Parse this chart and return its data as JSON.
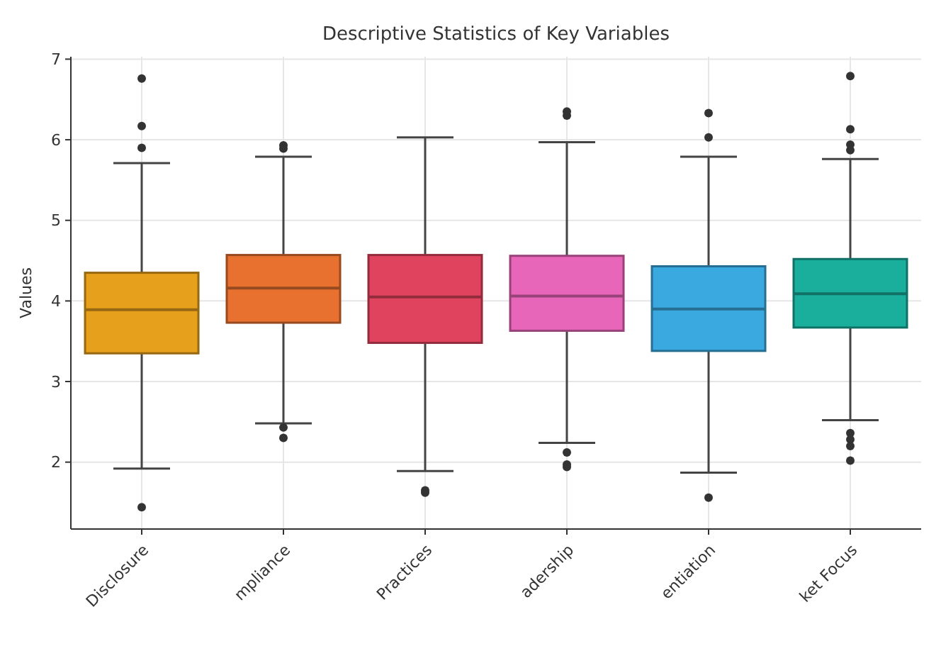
{
  "chart_data": {
    "type": "box",
    "title": "Descriptive Statistics of Key Variables",
    "ylabel": "Values",
    "categories": [
      "Disclosure",
      "mpliance",
      "Practices",
      "adership",
      "entiation",
      "ket Focus"
    ],
    "colors": [
      "#e6a01c",
      "#e8712f",
      "#e0435e",
      "#e766b9",
      "#3aa9e0",
      "#1aae9c"
    ],
    "boxes": [
      {
        "low": 1.92,
        "q1": 3.35,
        "median": 3.89,
        "q3": 4.35,
        "high": 5.71,
        "outliers": [
          6.76,
          6.17,
          5.9,
          1.44
        ]
      },
      {
        "low": 2.48,
        "q1": 3.73,
        "median": 4.16,
        "q3": 4.57,
        "high": 5.79,
        "outliers": [
          5.89,
          5.93,
          2.43,
          2.3
        ]
      },
      {
        "low": 1.89,
        "q1": 3.48,
        "median": 4.05,
        "q3": 4.57,
        "high": 6.03,
        "outliers": [
          1.65,
          1.62
        ]
      },
      {
        "low": 2.24,
        "q1": 3.63,
        "median": 4.06,
        "q3": 4.56,
        "high": 5.97,
        "outliers": [
          6.35,
          6.3,
          2.12,
          1.97,
          1.94
        ]
      },
      {
        "low": 1.87,
        "q1": 3.38,
        "median": 3.9,
        "q3": 4.43,
        "high": 5.79,
        "outliers": [
          6.33,
          6.03,
          1.56
        ]
      },
      {
        "low": 2.52,
        "q1": 3.67,
        "median": 4.09,
        "q3": 4.52,
        "high": 5.76,
        "outliers": [
          6.79,
          6.13,
          5.94,
          5.87,
          2.36,
          2.28,
          2.2,
          2.02
        ]
      }
    ],
    "ylim": [
      1.17,
      7.03
    ],
    "yticks": [
      2,
      3,
      4,
      5,
      6,
      7
    ],
    "grid": true
  }
}
